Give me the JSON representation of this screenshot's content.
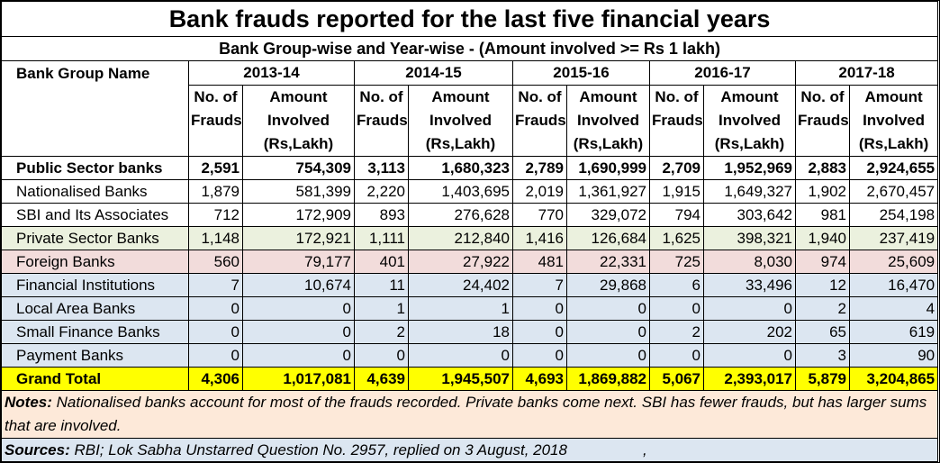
{
  "title": "Bank frauds reported for the last five financial years",
  "subtitle": "Bank Group-wise and Year-wise - (Amount involved >= Rs 1 lakh)",
  "header": {
    "bank_group": "Bank Group Name",
    "years": [
      "2013-14",
      "2014-15",
      "2015-16",
      "2016-17",
      "2017-18"
    ],
    "frauds_label": [
      "No. of",
      "Frauds"
    ],
    "amount_label": [
      "Amount",
      "Involved",
      "(Rs,Lakh)"
    ]
  },
  "rows": [
    {
      "name": "Public Sector banks",
      "style": "bold",
      "values": [
        "2,591",
        "754,309",
        "3,113",
        "1,680,323",
        "2,789",
        "1,690,999",
        "2,709",
        "1,952,969",
        "2,883",
        "2,924,655"
      ]
    },
    {
      "name": "Nationalised Banks",
      "style": "",
      "values": [
        "1,879",
        "581,399",
        "2,220",
        "1,403,695",
        "2,019",
        "1,361,927",
        "1,915",
        "1,649,327",
        "1,902",
        "2,670,457"
      ]
    },
    {
      "name": "SBI and Its Associates",
      "style": "",
      "values": [
        "712",
        "172,909",
        "893",
        "276,628",
        "770",
        "329,072",
        "794",
        "303,642",
        "981",
        "254,198"
      ]
    },
    {
      "name": "Private Sector Banks",
      "style": "green",
      "values": [
        "1,148",
        "172,921",
        "1,111",
        "212,840",
        "1,416",
        "126,684",
        "1,625",
        "398,321",
        "1,940",
        "237,419"
      ]
    },
    {
      "name": "Foreign Banks",
      "style": "pink",
      "values": [
        "560",
        "79,177",
        "401",
        "27,922",
        "481",
        "22,331",
        "725",
        "8,030",
        "974",
        "25,609"
      ]
    },
    {
      "name": "Financial Institutions",
      "style": "blue",
      "values": [
        "7",
        "10,674",
        "11",
        "24,402",
        "7",
        "29,868",
        "6",
        "33,496",
        "12",
        "16,470"
      ]
    },
    {
      "name": "Local Area Banks",
      "style": "blue",
      "values": [
        "0",
        "0",
        "1",
        "1",
        "0",
        "0",
        "0",
        "0",
        "2",
        "4"
      ]
    },
    {
      "name": "Small Finance Banks",
      "style": "blue",
      "values": [
        "0",
        "0",
        "2",
        "18",
        "0",
        "0",
        "2",
        "202",
        "65",
        "619"
      ]
    },
    {
      "name": "Payment Banks",
      "style": "blue",
      "values": [
        "0",
        "0",
        "0",
        "0",
        "0",
        "0",
        "0",
        "0",
        "3",
        "90"
      ]
    },
    {
      "name": "Grand Total",
      "style": "yellow",
      "values": [
        "4,306",
        "1,017,081",
        "4,639",
        "1,945,507",
        "4,693",
        "1,869,882",
        "5,067",
        "2,393,017",
        "5,879",
        "3,204,865"
      ]
    }
  ],
  "notes": {
    "label": "Notes:",
    "text": " Nationalised banks account for most of the frauds recorded.  Private banks come next.  SBI has fewer frauds, but has larger sums that are involved."
  },
  "sources": {
    "label": "Sources:",
    "text": " RBI; Lok Sabha Unstarred Question No. 2957, replied on 3 August, 2018",
    "trailing": ","
  }
}
